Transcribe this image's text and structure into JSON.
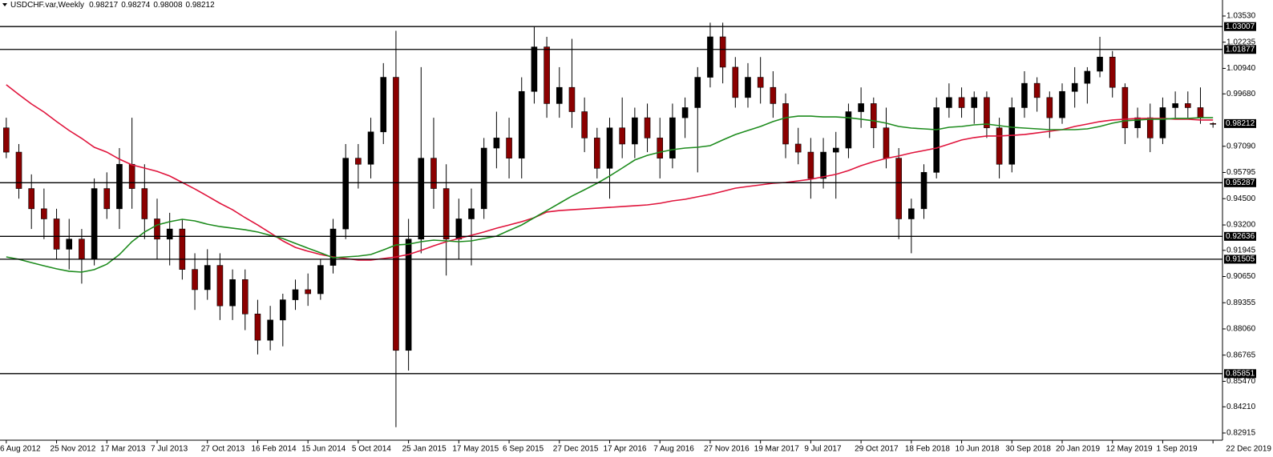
{
  "chart_data": {
    "type": "candlestick",
    "title": "USDCHF.var,Weekly",
    "categories": [
      "6 Aug 2012",
      null,
      null,
      null,
      "25 Nov 2012",
      null,
      null,
      null,
      "17 Mar 2013",
      null,
      null,
      null,
      "7 Jul 2013",
      null,
      null,
      null,
      "27 Oct 2013",
      null,
      null,
      null,
      "16 Feb 2014",
      null,
      null,
      null,
      "15 Jun 2014",
      null,
      null,
      null,
      "5 Oct 2014",
      null,
      null,
      null,
      "25 Jan 2015",
      null,
      null,
      null,
      "17 May 2015",
      null,
      null,
      null,
      "6 Sep 2015",
      null,
      null,
      null,
      "27 Dec 2015",
      null,
      null,
      null,
      "17 Apr 2016",
      null,
      null,
      null,
      "7 Aug 2016",
      null,
      null,
      null,
      "27 Nov 2016",
      null,
      null,
      null,
      "19 Mar 2017",
      null,
      null,
      null,
      "9 Jul 2017",
      null,
      null,
      null,
      "29 Oct 2017",
      null,
      null,
      null,
      "18 Feb 2018",
      null,
      null,
      null,
      "10 Jun 2018",
      null,
      null,
      null,
      "30 Sep 2018",
      null,
      null,
      null,
      "20 Jan 2019",
      null,
      null,
      null,
      "12 May 2019",
      null,
      null,
      null,
      "1 Sep 2019",
      null,
      null,
      null,
      "22 Dec 2019"
    ],
    "open": [
      0.98,
      0.968,
      0.95,
      0.94,
      0.935,
      0.92,
      0.925,
      0.915,
      0.95,
      0.94,
      0.962,
      0.95,
      0.935,
      0.925,
      0.93,
      0.91,
      0.9,
      0.912,
      0.892,
      0.905,
      0.888,
      0.875,
      0.885,
      0.895,
      0.9,
      0.898,
      0.912,
      0.93,
      0.965,
      0.962,
      0.978,
      1.005,
      0.87,
      0.925,
      0.965,
      0.95,
      0.925,
      0.935,
      0.94,
      0.97,
      0.975,
      0.965,
      0.998,
      1.02,
      0.992,
      1.0,
      0.988,
      0.975,
      0.96,
      0.98,
      0.972,
      0.985,
      0.975,
      0.965,
      0.985,
      0.99,
      1.005,
      1.025,
      1.01,
      0.995,
      1.005,
      1.0,
      0.992,
      0.972,
      0.968,
      0.955,
      0.968,
      0.97,
      0.988,
      0.992,
      0.98,
      0.965,
      0.935,
      0.94,
      0.958,
      0.99,
      0.995,
      0.99,
      0.995,
      0.98,
      0.962,
      0.99,
      1.002,
      0.995,
      0.985,
      0.998,
      1.002,
      1.008,
      1.015,
      1.0,
      0.98,
      0.985,
      0.975,
      0.99,
      0.992,
      0.99,
      0.98217
    ],
    "high": [
      0.985,
      0.972,
      0.957,
      0.95,
      0.94,
      0.935,
      0.93,
      0.955,
      0.958,
      0.97,
      0.985,
      0.962,
      0.945,
      0.938,
      0.935,
      0.918,
      0.92,
      0.918,
      0.91,
      0.91,
      0.895,
      0.892,
      0.898,
      0.905,
      0.908,
      0.915,
      0.935,
      0.972,
      0.972,
      0.985,
      1.012,
      1.028,
      0.935,
      1.01,
      0.985,
      0.962,
      0.945,
      0.95,
      0.975,
      0.988,
      0.985,
      1.005,
      1.03,
      1.025,
      1.01,
      1.024,
      0.995,
      0.98,
      0.985,
      0.995,
      0.99,
      0.992,
      0.985,
      0.992,
      0.995,
      1.01,
      1.032,
      1.032,
      1.015,
      1.012,
      1.015,
      1.008,
      0.997,
      0.98,
      0.975,
      0.975,
      0.978,
      0.992,
      1.0,
      0.995,
      0.99,
      0.97,
      0.945,
      0.962,
      0.995,
      1.002,
      1.0,
      0.998,
      0.998,
      0.985,
      0.995,
      1.008,
      1.005,
      0.998,
      1.002,
      1.01,
      1.01,
      1.025,
      1.018,
      1.002,
      0.99,
      0.992,
      0.995,
      0.998,
      0.998,
      1.0,
      0.98274
    ],
    "low": [
      0.965,
      0.945,
      0.93,
      0.925,
      0.915,
      0.91,
      0.903,
      0.912,
      0.935,
      0.93,
      0.94,
      0.925,
      0.915,
      0.912,
      0.905,
      0.89,
      0.895,
      0.885,
      0.885,
      0.88,
      0.868,
      0.87,
      0.872,
      0.89,
      0.892,
      0.895,
      0.908,
      0.925,
      0.95,
      0.955,
      0.972,
      0.832,
      0.86,
      0.918,
      0.94,
      0.907,
      0.915,
      0.912,
      0.935,
      0.96,
      0.955,
      0.955,
      0.992,
      0.985,
      0.985,
      0.98,
      0.968,
      0.955,
      0.945,
      0.965,
      0.965,
      0.968,
      0.955,
      0.96,
      0.975,
      0.958,
      1.0,
      1.002,
      0.99,
      0.99,
      0.992,
      0.985,
      0.965,
      0.962,
      0.945,
      0.95,
      0.945,
      0.965,
      0.98,
      0.97,
      0.96,
      0.925,
      0.918,
      0.935,
      0.955,
      0.985,
      0.985,
      0.982,
      0.975,
      0.955,
      0.958,
      0.985,
      0.988,
      0.975,
      0.982,
      0.99,
      0.992,
      1.005,
      0.995,
      0.972,
      0.975,
      0.968,
      0.972,
      0.985,
      0.985,
      0.982,
      0.98008
    ],
    "close": [
      0.968,
      0.95,
      0.94,
      0.935,
      0.92,
      0.925,
      0.915,
      0.95,
      0.94,
      0.962,
      0.95,
      0.935,
      0.925,
      0.93,
      0.91,
      0.9,
      0.912,
      0.892,
      0.905,
      0.888,
      0.875,
      0.885,
      0.895,
      0.9,
      0.898,
      0.912,
      0.93,
      0.965,
      0.962,
      0.978,
      1.005,
      0.87,
      0.925,
      0.965,
      0.95,
      0.925,
      0.935,
      0.94,
      0.97,
      0.975,
      0.965,
      0.998,
      1.02,
      0.992,
      1.0,
      0.988,
      0.975,
      0.96,
      0.98,
      0.972,
      0.985,
      0.975,
      0.965,
      0.985,
      0.99,
      1.005,
      1.025,
      1.01,
      0.995,
      1.005,
      1.0,
      0.992,
      0.972,
      0.968,
      0.955,
      0.968,
      0.97,
      0.988,
      0.992,
      0.98,
      0.965,
      0.935,
      0.94,
      0.958,
      0.99,
      0.995,
      0.99,
      0.995,
      0.98,
      0.962,
      0.99,
      1.002,
      0.995,
      0.985,
      0.998,
      1.002,
      1.008,
      1.015,
      1.0,
      0.98,
      0.985,
      0.975,
      0.99,
      0.992,
      0.99,
      0.985,
      0.98212
    ],
    "bull_color": "#000000",
    "bear_color": "#8b0000",
    "moving_averages": [
      {
        "color": "#e0143c",
        "values": [
          1.0013,
          0.9965,
          0.9918,
          0.9878,
          0.9831,
          0.9787,
          0.9748,
          0.9704,
          0.968,
          0.9645,
          0.9617,
          0.9601,
          0.9585,
          0.9562,
          0.953,
          0.9498,
          0.9463,
          0.9427,
          0.9395,
          0.9356,
          0.932,
          0.9281,
          0.9241,
          0.9209,
          0.919,
          0.9174,
          0.9162,
          0.9154,
          0.9146,
          0.9146,
          0.9154,
          0.9162,
          0.9174,
          0.9194,
          0.9217,
          0.9237,
          0.9253,
          0.9269,
          0.9285,
          0.9304,
          0.932,
          0.9336,
          0.9356,
          0.9384,
          0.9391,
          0.9395,
          0.9399,
          0.9403,
          0.9407,
          0.9411,
          0.9415,
          0.9419,
          0.9427,
          0.9439,
          0.9447,
          0.9459,
          0.9471,
          0.9486,
          0.9502,
          0.951,
          0.9518,
          0.9526,
          0.953,
          0.9538,
          0.9546,
          0.9558,
          0.957,
          0.9589,
          0.9613,
          0.9633,
          0.9649,
          0.9661,
          0.9676,
          0.9688,
          0.97,
          0.972,
          0.974,
          0.9752,
          0.976,
          0.976,
          0.9763,
          0.9767,
          0.9775,
          0.9783,
          0.9791,
          0.9807,
          0.9819,
          0.9831,
          0.9839,
          0.9843,
          0.9847,
          0.9847,
          0.9847,
          0.9843,
          0.9843,
          0.9839,
          0.9839
        ]
      },
      {
        "color": "#1e8c1e",
        "values": [
          0.9162,
          0.915,
          0.9134,
          0.9118,
          0.9103,
          0.9091,
          0.9087,
          0.9099,
          0.9126,
          0.9174,
          0.9237,
          0.9285,
          0.932,
          0.9336,
          0.9348,
          0.934,
          0.9324,
          0.9312,
          0.9304,
          0.9296,
          0.9285,
          0.9269,
          0.9253,
          0.9229,
          0.9205,
          0.9182,
          0.9158,
          0.9162,
          0.9166,
          0.9174,
          0.9197,
          0.9221,
          0.9225,
          0.9237,
          0.9245,
          0.9241,
          0.9237,
          0.9241,
          0.9253,
          0.9265,
          0.9293,
          0.932,
          0.9356,
          0.9391,
          0.9427,
          0.9463,
          0.9494,
          0.9526,
          0.9562,
          0.9601,
          0.9641,
          0.9664,
          0.968,
          0.9692,
          0.97,
          0.9704,
          0.9712,
          0.974,
          0.9767,
          0.9787,
          0.9807,
          0.9831,
          0.985,
          0.9858,
          0.9858,
          0.9854,
          0.9854,
          0.985,
          0.9843,
          0.9835,
          0.9823,
          0.9807,
          0.9799,
          0.9795,
          0.9791,
          0.9803,
          0.9807,
          0.9815,
          0.9819,
          0.9811,
          0.9803,
          0.9799,
          0.9795,
          0.9791,
          0.9791,
          0.9791,
          0.9795,
          0.9807,
          0.9823,
          0.9835,
          0.9839,
          0.9843,
          0.9843,
          0.9847,
          0.9847,
          0.985,
          0.985
        ]
      }
    ],
    "levels": [
      1.03007,
      1.01877,
      0.95287,
      0.92636,
      0.91505,
      0.85851
    ],
    "ylim": [
      0.82559,
      1.04321
    ],
    "yticks": [
      {
        "value": 1.0353,
        "label": "1.03530"
      },
      1.02235,
      {
        "value": 1.0094,
        "label": "1.00940"
      },
      {
        "value": 0.9968,
        "label": "0.99680"
      },
      {
        "value": 0.9709,
        "label": "0.97090"
      },
      0.95795,
      {
        "value": 0.945,
        "label": "0.94500"
      },
      {
        "value": 0.932,
        "label": "0.93200"
      },
      0.91945,
      {
        "value": 0.9065,
        "label": "0.90650"
      },
      0.89355,
      {
        "value": 0.8806,
        "label": "0.88060"
      },
      0.86765,
      {
        "value": 0.8547,
        "label": "0.85470"
      },
      {
        "value": 0.8421,
        "label": "0.84210"
      },
      0.82915
    ],
    "grid": false
  }
}
